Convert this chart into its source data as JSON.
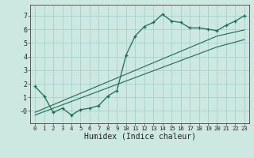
{
  "x_data": [
    0,
    1,
    2,
    3,
    4,
    5,
    6,
    7,
    8,
    9,
    10,
    11,
    12,
    13,
    14,
    15,
    16,
    17,
    18,
    19,
    20,
    21,
    22,
    23
  ],
  "y_main": [
    1.8,
    1.1,
    -0.1,
    0.2,
    -0.3,
    0.1,
    0.2,
    0.4,
    1.1,
    1.5,
    4.1,
    5.5,
    6.2,
    6.5,
    7.1,
    6.6,
    6.5,
    6.1,
    6.1,
    6.0,
    5.9,
    6.3,
    6.6,
    7.0
  ],
  "y_line1": [
    -0.1,
    0.18,
    0.46,
    0.74,
    1.02,
    1.3,
    1.58,
    1.86,
    2.14,
    2.42,
    2.7,
    2.98,
    3.26,
    3.54,
    3.82,
    4.1,
    4.38,
    4.66,
    4.94,
    5.22,
    5.5,
    5.65,
    5.8,
    5.95
  ],
  "y_line2": [
    -0.3,
    -0.05,
    0.2,
    0.45,
    0.7,
    0.95,
    1.2,
    1.45,
    1.7,
    1.95,
    2.2,
    2.45,
    2.7,
    2.95,
    3.2,
    3.45,
    3.7,
    3.95,
    4.2,
    4.45,
    4.7,
    4.88,
    5.06,
    5.24
  ],
  "line_color": "#1a6b5a",
  "bg_color": "#cce8e0",
  "grid_color": "#9fcfc4",
  "xlabel": "Humidex (Indice chaleur)",
  "ylim": [
    -0.9,
    7.8
  ],
  "xlim": [
    -0.5,
    23.5
  ],
  "yticks": [
    0,
    1,
    2,
    3,
    4,
    5,
    6,
    7
  ],
  "ytick_labels": [
    "-0",
    "1",
    "2",
    "3",
    "4",
    "5",
    "6",
    "7"
  ],
  "xtick_labels": [
    "0",
    "1",
    "2",
    "3",
    "4",
    "5",
    "6",
    "7",
    "8",
    "9",
    "10",
    "11",
    "12",
    "13",
    "14",
    "15",
    "16",
    "17",
    "18",
    "19",
    "20",
    "21",
    "22",
    "23"
  ]
}
